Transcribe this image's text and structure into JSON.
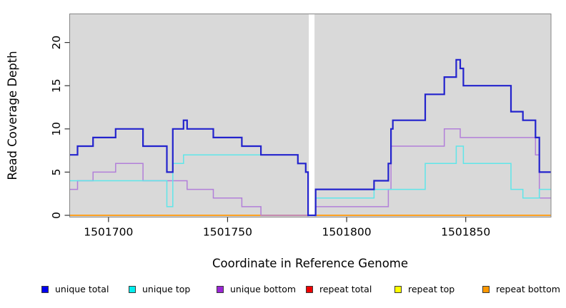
{
  "figure": {
    "xlabel": "Coordinate in Reference Genome",
    "ylabel": "Read Coverage Depth"
  },
  "chart_data": {
    "type": "line",
    "step": true,
    "title": "",
    "xlabel": "Coordinate in Reference Genome",
    "ylabel": "Read Coverage Depth",
    "x_range": [
      1501683.7,
      1501885.8
    ],
    "y_range": [
      -0.2,
      23.3
    ],
    "x_ticks": [
      1501700,
      1501750,
      1501800,
      1501850
    ],
    "y_ticks": [
      0,
      5,
      10,
      15,
      20
    ],
    "grid": false,
    "plot_background": "#d9d9d9",
    "gap_region": [
      1501784.1,
      1501786.5
    ],
    "legend_position": "bottom",
    "series": [
      {
        "name": "unique total",
        "color": "#2323cd",
        "swatch": "#0000f0",
        "points": [
          [
            1501683.7,
            7
          ],
          [
            1501687,
            8
          ],
          [
            1501693.5,
            9
          ],
          [
            1501703,
            10
          ],
          [
            1501714.5,
            8
          ],
          [
            1501724.5,
            5
          ],
          [
            1501727,
            10
          ],
          [
            1501731.5,
            11
          ],
          [
            1501733,
            10
          ],
          [
            1501744,
            9
          ],
          [
            1501756,
            8
          ],
          [
            1501764,
            7
          ],
          [
            1501779.5,
            6
          ],
          [
            1501782.8,
            5
          ],
          [
            1501783.8,
            0
          ],
          [
            1501787,
            3
          ],
          [
            1501811.5,
            4
          ],
          [
            1501817.5,
            6
          ],
          [
            1501818.6,
            10
          ],
          [
            1501819.4,
            11
          ],
          [
            1501833,
            14
          ],
          [
            1501841,
            16
          ],
          [
            1501846,
            18
          ],
          [
            1501847.7,
            17
          ],
          [
            1501849,
            15
          ],
          [
            1501869,
            12
          ],
          [
            1501874,
            11
          ],
          [
            1501879.3,
            9
          ],
          [
            1501880.9,
            5
          ],
          [
            1501885.8,
            5
          ]
        ]
      },
      {
        "name": "unique top",
        "color": "#5fe6e9",
        "swatch": "#00eeee",
        "points": [
          [
            1501683.7,
            4
          ],
          [
            1501724.5,
            1
          ],
          [
            1501727,
            6
          ],
          [
            1501731.5,
            7
          ],
          [
            1501779.5,
            6
          ],
          [
            1501782.8,
            5
          ],
          [
            1501783.8,
            0
          ],
          [
            1501787,
            2
          ],
          [
            1501811.5,
            3
          ],
          [
            1501833,
            6
          ],
          [
            1501846,
            8
          ],
          [
            1501849,
            6
          ],
          [
            1501869,
            3
          ],
          [
            1501874,
            2
          ],
          [
            1501880.9,
            3
          ],
          [
            1501885.8,
            3
          ]
        ]
      },
      {
        "name": "unique bottom",
        "color": "#b27fd9",
        "swatch": "#9b25d6",
        "points": [
          [
            1501683.7,
            3
          ],
          [
            1501687,
            4
          ],
          [
            1501693.5,
            5
          ],
          [
            1501703,
            6
          ],
          [
            1501714.5,
            4
          ],
          [
            1501733,
            3
          ],
          [
            1501744,
            2
          ],
          [
            1501756,
            1
          ],
          [
            1501764,
            0
          ],
          [
            1501787,
            1
          ],
          [
            1501817.5,
            3
          ],
          [
            1501818.6,
            8
          ],
          [
            1501841,
            10
          ],
          [
            1501847.7,
            9
          ],
          [
            1501879.3,
            7
          ],
          [
            1501880.9,
            2
          ],
          [
            1501885.8,
            2
          ]
        ]
      },
      {
        "name": "repeat total",
        "color": "#cc2020",
        "swatch": "#ee0000",
        "points": [
          [
            1501683.7,
            0
          ],
          [
            1501885.8,
            0
          ]
        ]
      },
      {
        "name": "repeat top",
        "color": "#e8e800",
        "swatch": "#ffff00",
        "points": [
          [
            1501683.7,
            0
          ],
          [
            1501885.8,
            0
          ]
        ]
      },
      {
        "name": "repeat bottom",
        "color": "#ff9d1c",
        "swatch": "#ff9800",
        "points": [
          [
            1501683.7,
            0
          ],
          [
            1501885.8,
            0
          ]
        ]
      }
    ]
  }
}
